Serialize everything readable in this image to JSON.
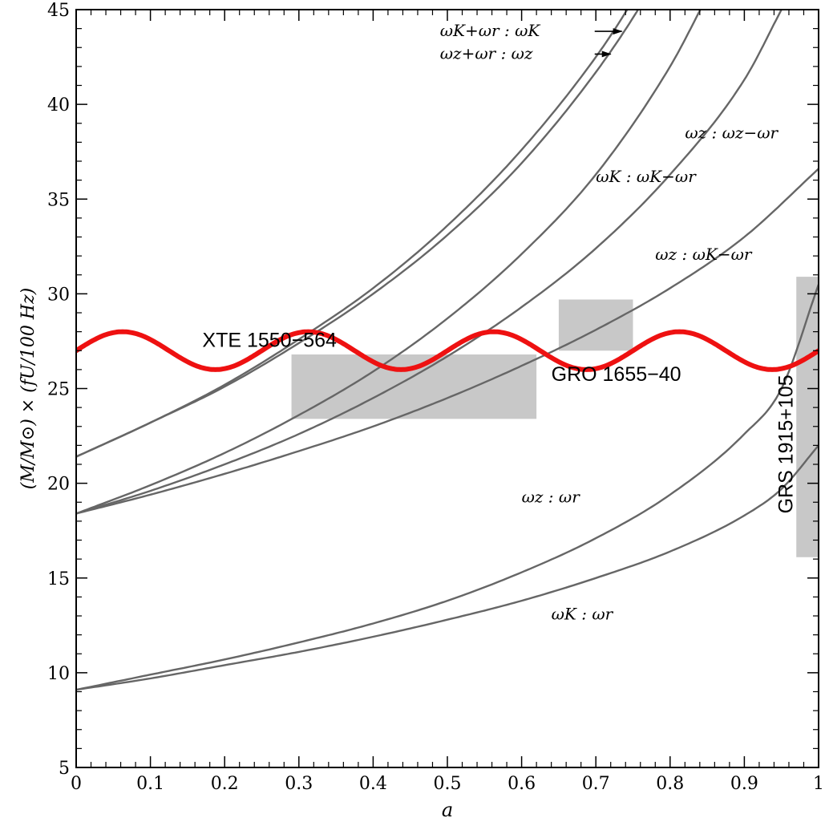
{
  "chart_data": {
    "type": "line",
    "xlabel": "a",
    "ylabel": "(M/M⊙) × (fU/100 Hz)",
    "xlim": [
      0,
      1
    ],
    "ylim": [
      5,
      45
    ],
    "x_ticks": [
      "0",
      "0.1",
      "0.2",
      "0.3",
      "0.4",
      "0.5",
      "0.6",
      "0.7",
      "0.8",
      "0.9",
      "1"
    ],
    "y_ticks": [
      "5",
      "10",
      "15",
      "20",
      "25",
      "30",
      "35",
      "40",
      "45"
    ],
    "grid": false,
    "colors": {
      "curves": "#666666",
      "wave": "#ee1111",
      "boxes": "#c8c8c8",
      "arrows": "#000000"
    },
    "series": [
      {
        "label": "ωK+ωr : ωK",
        "x": [
          0,
          0.1,
          0.2,
          0.3,
          0.4,
          0.5,
          0.6,
          0.7,
          0.75,
          0.8
        ],
        "y": [
          21.4,
          23.2,
          25.2,
          27.6,
          30.3,
          33.6,
          37.6,
          42.5,
          45.5,
          49.0
        ]
      },
      {
        "label": "ωz+ωr : ωz",
        "x": [
          0,
          0.1,
          0.2,
          0.3,
          0.4,
          0.5,
          0.6,
          0.7,
          0.76,
          0.8
        ],
        "y": [
          21.4,
          23.2,
          25.1,
          27.4,
          30.0,
          33.1,
          36.9,
          41.7,
          45.2,
          48.0
        ]
      },
      {
        "label": "ωz : ωz−ωr",
        "x": [
          0,
          0.1,
          0.2,
          0.3,
          0.4,
          0.5,
          0.6,
          0.7,
          0.8,
          0.85
        ],
        "y": [
          18.4,
          19.9,
          21.6,
          23.6,
          25.9,
          28.7,
          32.1,
          36.3,
          42.0,
          45.7
        ]
      },
      {
        "label": "ωK : ωK−ωr",
        "x": [
          0,
          0.1,
          0.2,
          0.3,
          0.4,
          0.5,
          0.6,
          0.7,
          0.8,
          0.9,
          0.95
        ],
        "y": [
          18.4,
          19.6,
          21.0,
          22.6,
          24.5,
          26.7,
          29.3,
          32.4,
          36.3,
          41.3,
          45.0
        ]
      },
      {
        "label": "ωz : ωK−ωr",
        "x": [
          0,
          0.1,
          0.2,
          0.3,
          0.4,
          0.5,
          0.6,
          0.7,
          0.8,
          0.9,
          1.0
        ],
        "y": [
          18.4,
          19.4,
          20.5,
          21.7,
          23.0,
          24.5,
          26.2,
          28.1,
          30.3,
          33.0,
          36.6
        ]
      },
      {
        "label": "ωz : ωr",
        "x": [
          0,
          0.1,
          0.2,
          0.3,
          0.4,
          0.5,
          0.6,
          0.7,
          0.8,
          0.9,
          0.95,
          1.0
        ],
        "y": [
          9.1,
          9.9,
          10.7,
          11.6,
          12.6,
          13.8,
          15.3,
          17.1,
          19.4,
          22.6,
          25.0,
          30.5
        ]
      },
      {
        "label": "ωK : ωr",
        "x": [
          0,
          0.1,
          0.2,
          0.3,
          0.4,
          0.5,
          0.6,
          0.7,
          0.8,
          0.9,
          0.95,
          1.0
        ],
        "y": [
          9.1,
          9.7,
          10.4,
          11.1,
          11.9,
          12.8,
          13.8,
          15.0,
          16.4,
          18.3,
          19.7,
          22.0
        ]
      }
    ],
    "sine_wave": {
      "center": 27.0,
      "amplitude": 1.0,
      "period": 0.25
    },
    "regions": [
      {
        "label": "XTE 1550−564",
        "x": [
          0.29,
          0.62
        ],
        "y": [
          23.4,
          26.8
        ]
      },
      {
        "label": "GRO 1655−40",
        "x": [
          0.65,
          0.75
        ],
        "y": [
          27.0,
          29.7
        ]
      },
      {
        "label": "GRS 1915+105",
        "x": [
          0.97,
          1.0
        ],
        "y": [
          16.1,
          30.9
        ]
      }
    ],
    "curve_labels": [
      {
        "series": 0,
        "x": 0.49,
        "y": 43.6,
        "arrow_to": [
          0.735,
          43.6
        ]
      },
      {
        "series": 1,
        "x": 0.49,
        "y": 42.4,
        "arrow_to": [
          0.72,
          42.4
        ]
      },
      {
        "series": 2,
        "x": 0.82,
        "y": 38.2
      },
      {
        "series": 3,
        "x": 0.7,
        "y": 35.9
      },
      {
        "series": 4,
        "x": 0.78,
        "y": 31.8
      },
      {
        "series": 5,
        "x": 0.6,
        "y": 19.0
      },
      {
        "series": 6,
        "x": 0.64,
        "y": 12.8
      }
    ],
    "region_labels": [
      {
        "region": 0,
        "x": 0.17,
        "y": 27.2,
        "rotate": false
      },
      {
        "region": 1,
        "x": 0.64,
        "y": 25.4,
        "rotate": false
      },
      {
        "region": 2,
        "x": 0.965,
        "y": 18.4,
        "rotate": true
      }
    ]
  }
}
